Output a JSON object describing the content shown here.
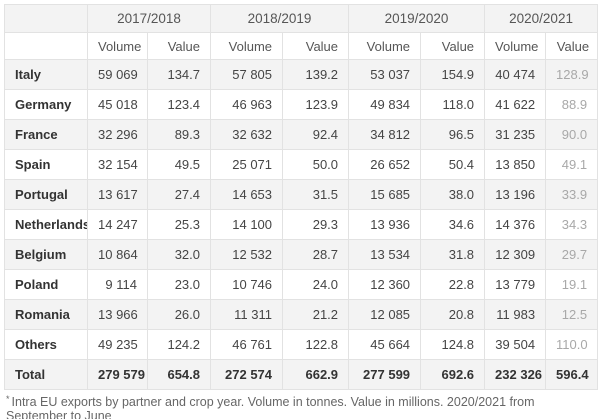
{
  "colors": {
    "background": "#ffffff",
    "stripe": "#f3f3f3",
    "border": "#e2e2e2",
    "header_text": "#565656",
    "body_text": "#454545",
    "row_label_text": "#333333",
    "muted_value_text": "#a8a8a8",
    "footnote_text": "#666666"
  },
  "table": {
    "year_groups": [
      "2017/2018",
      "2018/2019",
      "2019/2020",
      "2020/2021"
    ],
    "measure_headers": [
      "Volume",
      "Value",
      "Volume",
      "Value",
      "Volume",
      "Value",
      "Volume",
      "Value"
    ],
    "rows": [
      {
        "name": "Italy",
        "values": [
          "59 069",
          "134.7",
          "57 805",
          "139.2",
          "53 037",
          "154.9",
          "40 474",
          "128.9"
        ]
      },
      {
        "name": "Germany",
        "values": [
          "45 018",
          "123.4",
          "46 963",
          "123.9",
          "49 834",
          "118.0",
          "41 622",
          "88.9"
        ]
      },
      {
        "name": "France",
        "values": [
          "32 296",
          "89.3",
          "32 632",
          "92.4",
          "34 812",
          "96.5",
          "31 235",
          "90.0"
        ]
      },
      {
        "name": "Spain",
        "values": [
          "32 154",
          "49.5",
          "25 071",
          "50.0",
          "26 652",
          "50.4",
          "13 850",
          "49.1"
        ]
      },
      {
        "name": "Portugal",
        "values": [
          "13 617",
          "27.4",
          "14 653",
          "31.5",
          "15 685",
          "38.0",
          "13 196",
          "33.9"
        ]
      },
      {
        "name": "Netherlands",
        "values": [
          "14 247",
          "25.3",
          "14 100",
          "29.3",
          "13 936",
          "34.6",
          "14 376",
          "34.3"
        ]
      },
      {
        "name": "Belgium",
        "values": [
          "10 864",
          "32.0",
          "12 532",
          "28.7",
          "13 534",
          "31.8",
          "12 309",
          "29.7"
        ]
      },
      {
        "name": "Poland",
        "values": [
          "9 114",
          "23.0",
          "10 746",
          "24.0",
          "12 360",
          "22.8",
          "13 779",
          "19.1"
        ]
      },
      {
        "name": "Romania",
        "values": [
          "13 966",
          "26.0",
          "11 311",
          "21.2",
          "12 085",
          "20.8",
          "11 983",
          "12.5"
        ]
      },
      {
        "name": "Others",
        "values": [
          "49 235",
          "124.2",
          "46 761",
          "122.8",
          "45 664",
          "124.8",
          "39 504",
          "110.0"
        ]
      }
    ],
    "total_row": {
      "name": "Total",
      "values": [
        "279 579",
        "654.8",
        "272 574",
        "662.9",
        "277 599",
        "692.6",
        "232 326",
        "596.4"
      ]
    },
    "footnote_marker": "*",
    "footnote_text": "Intra EU exports by partner and crop year. Volume in tonnes. Value in millions. 2020/2021 from September to June"
  },
  "chart_data": {
    "type": "table",
    "title": "Intra EU exports by partner and crop year",
    "row_labels": [
      "Italy",
      "Germany",
      "France",
      "Spain",
      "Portugal",
      "Netherlands",
      "Belgium",
      "Poland",
      "Romania",
      "Others",
      "Total"
    ],
    "column_groups": [
      "2017/2018",
      "2018/2019",
      "2019/2020",
      "2020/2021"
    ],
    "sub_columns": [
      "Volume",
      "Value"
    ],
    "series": [
      {
        "name": "2017/2018",
        "volume": [
          59069,
          45018,
          32296,
          32154,
          13617,
          14247,
          10864,
          9114,
          13966,
          49235,
          279579
        ],
        "value": [
          134.7,
          123.4,
          89.3,
          49.5,
          27.4,
          25.3,
          32.0,
          23.0,
          26.0,
          124.2,
          654.8
        ]
      },
      {
        "name": "2018/2019",
        "volume": [
          57805,
          46963,
          32632,
          25071,
          14653,
          14100,
          12532,
          10746,
          11311,
          46761,
          272574
        ],
        "value": [
          139.2,
          123.9,
          92.4,
          50.0,
          31.5,
          29.3,
          28.7,
          24.0,
          21.2,
          122.8,
          662.9
        ]
      },
      {
        "name": "2019/2020",
        "volume": [
          53037,
          49834,
          34812,
          26652,
          15685,
          13936,
          13534,
          12360,
          12085,
          45664,
          277599
        ],
        "value": [
          154.9,
          118.0,
          96.5,
          50.4,
          38.0,
          34.6,
          31.8,
          22.8,
          20.8,
          124.8,
          692.6
        ]
      },
      {
        "name": "2020/2021",
        "volume": [
          40474,
          41622,
          31235,
          13850,
          13196,
          14376,
          12309,
          13779,
          11983,
          39504,
          232326
        ],
        "value": [
          128.9,
          88.9,
          90.0,
          49.1,
          33.9,
          34.3,
          29.7,
          19.1,
          12.5,
          110.0,
          596.4
        ]
      }
    ],
    "units": {
      "volume": "tonnes",
      "value": "millions"
    },
    "footnote": "* Intra EU exports by partner and crop year. Volume in tonnes. Value in millions. 2020/2021 from September to June"
  }
}
